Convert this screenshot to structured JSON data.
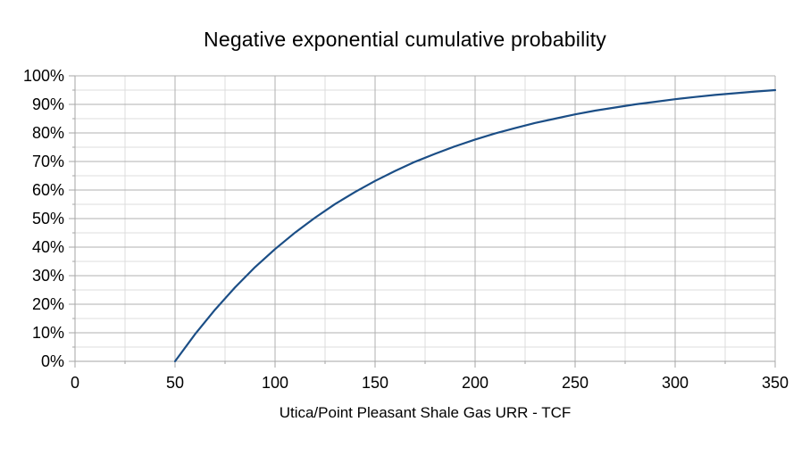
{
  "chart": {
    "title": "Negative exponential cumulative probability",
    "x_axis": {
      "label": "Utica/Point Pleasant Shale Gas URR - TCF",
      "major_tick_labels": [
        "0",
        "50",
        "100",
        "150",
        "200",
        "250",
        "300",
        "350"
      ],
      "major_interval": 50,
      "minor_interval": 25
    },
    "y_axis": {
      "major_tick_labels": [
        "0%",
        "10%",
        "20%",
        "30%",
        "40%",
        "50%",
        "60%",
        "70%",
        "80%",
        "90%",
        "100%"
      ],
      "major_interval_pct": 10,
      "minor_interval_pct": 5
    },
    "colors": {
      "background": "#ffffff",
      "line": "#1b4e86",
      "grid_major": "#b0b0b0",
      "grid_minor": "#dcdcdc",
      "axis": "#a6a6a6",
      "text": "#000000"
    }
  },
  "chart_data": {
    "type": "line",
    "title": "Negative exponential cumulative probability",
    "xlabel": "Utica/Point Pleasant Shale Gas URR - TCF",
    "ylabel": "",
    "xlim": [
      0,
      350
    ],
    "ylim": [
      0,
      1
    ],
    "grid": "major+minor",
    "legend": "none",
    "series": [
      {
        "x": [
          50,
          60,
          70,
          80,
          90,
          100,
          110,
          120,
          130,
          140,
          150,
          160,
          170,
          180,
          190,
          200,
          210,
          220,
          230,
          240,
          250,
          260,
          270,
          280,
          290,
          300,
          310,
          320,
          330,
          340,
          350
        ],
        "y": [
          0,
          0.095,
          0.181,
          0.259,
          0.33,
          0.393,
          0.451,
          0.503,
          0.551,
          0.593,
          0.632,
          0.667,
          0.699,
          0.727,
          0.753,
          0.777,
          0.798,
          0.817,
          0.835,
          0.85,
          0.865,
          0.878,
          0.889,
          0.9,
          0.909,
          0.918,
          0.926,
          0.933,
          0.939,
          0.945,
          0.95
        ]
      }
    ]
  }
}
